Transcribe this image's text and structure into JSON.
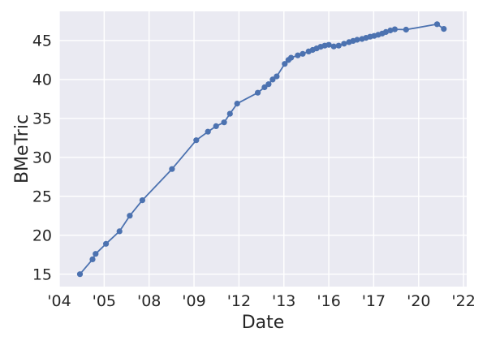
{
  "chart_data": {
    "type": "line",
    "title": "",
    "xlabel": "Date",
    "ylabel": "BMeTric",
    "x_unit": "tick_index",
    "x_tick_labels": [
      "'04",
      "'05",
      "'08",
      "'09",
      "'12",
      "'13",
      "'16",
      "'17",
      "'20",
      "'22"
    ],
    "x_tick_positions": [
      0,
      1,
      2,
      3,
      4,
      5,
      6,
      7,
      8,
      9
    ],
    "xlim": [
      0,
      9.07
    ],
    "y_ticks": [
      15,
      20,
      25,
      30,
      35,
      40,
      45
    ],
    "ylim": [
      13.4,
      48.75
    ],
    "grid": true,
    "legend_visible": false,
    "colors": {
      "figure_bg": "#ffffff",
      "plot_bg": "#eaeaf2",
      "grid": "#ffffff",
      "text": "#262626",
      "series": "#4C72B0"
    },
    "series": [
      {
        "name": "BMeTric",
        "color": "#4C72B0",
        "marker": "circle",
        "points": [
          [
            0.46,
            15.0
          ],
          [
            0.74,
            16.9
          ],
          [
            0.81,
            17.6
          ],
          [
            1.04,
            18.9
          ],
          [
            1.34,
            20.5
          ],
          [
            1.57,
            22.5
          ],
          [
            1.85,
            24.5
          ],
          [
            2.51,
            28.5
          ],
          [
            3.05,
            32.2
          ],
          [
            3.31,
            33.3
          ],
          [
            3.49,
            34.0
          ],
          [
            3.67,
            34.5
          ],
          [
            3.8,
            35.6
          ],
          [
            3.96,
            36.9
          ],
          [
            4.42,
            38.3
          ],
          [
            4.57,
            39.0
          ],
          [
            4.66,
            39.4
          ],
          [
            4.75,
            40.0
          ],
          [
            4.84,
            40.4
          ],
          [
            5.02,
            42.0
          ],
          [
            5.1,
            42.5
          ],
          [
            5.16,
            42.8
          ],
          [
            5.31,
            43.1
          ],
          [
            5.42,
            43.3
          ],
          [
            5.55,
            43.6
          ],
          [
            5.64,
            43.8
          ],
          [
            5.73,
            44.0
          ],
          [
            5.82,
            44.2
          ],
          [
            5.91,
            44.35
          ],
          [
            6.0,
            44.45
          ],
          [
            6.11,
            44.25
          ],
          [
            6.22,
            44.35
          ],
          [
            6.34,
            44.6
          ],
          [
            6.45,
            44.8
          ],
          [
            6.54,
            44.95
          ],
          [
            6.63,
            45.1
          ],
          [
            6.74,
            45.2
          ],
          [
            6.83,
            45.35
          ],
          [
            6.92,
            45.5
          ],
          [
            7.01,
            45.6
          ],
          [
            7.1,
            45.75
          ],
          [
            7.19,
            45.9
          ],
          [
            7.27,
            46.1
          ],
          [
            7.37,
            46.3
          ],
          [
            7.47,
            46.45
          ],
          [
            7.72,
            46.4
          ],
          [
            8.41,
            47.1
          ],
          [
            8.56,
            46.5
          ]
        ]
      }
    ]
  }
}
